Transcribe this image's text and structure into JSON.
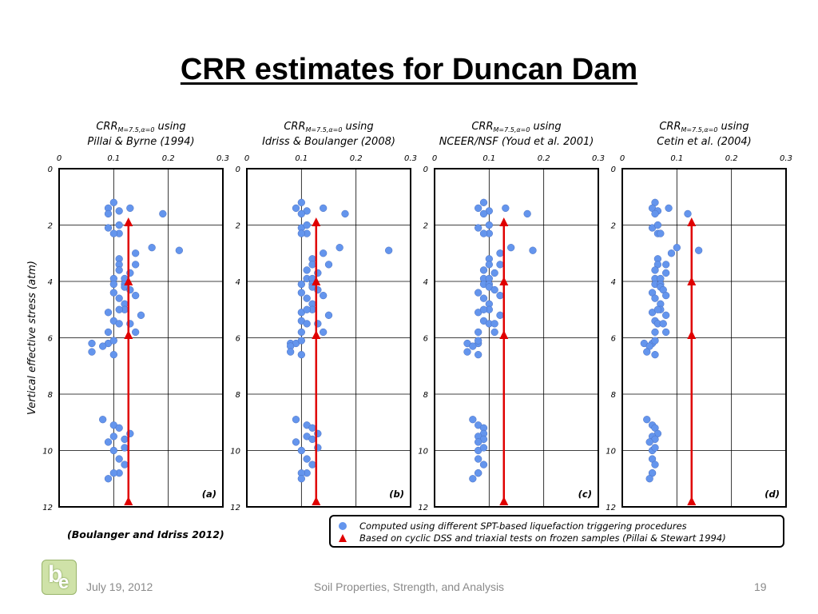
{
  "title": "CRR estimates for Duncan Dam",
  "footer": {
    "date": "July 19, 2012",
    "center": "Soil Properties, Strength, and Analysis",
    "page": "19"
  },
  "source": "(Boulanger and Idriss 2012)",
  "legend": {
    "computed": "Computed using different SPT-based liquefaction triggering procedures",
    "frozen": "Based on cyclic DSS and triaxial tests on frozen samples (Pillai & Stewart 1994)"
  },
  "colors": {
    "points": "#6495ED",
    "frozen": "#e00000"
  },
  "icons": {
    "logo": "be-logo-icon"
  },
  "chart_data": [
    {
      "type": "scatter",
      "panel": "(a)",
      "title_prefix": "CRR",
      "title_subscript": "M=7.5,α=0",
      "title_suffix": "using",
      "title_line2": "Pillai & Byrne (1994)",
      "ylabel": "Vertical effective stress (atm)",
      "xlim": [
        0,
        0.3
      ],
      "ylim": [
        12,
        0
      ],
      "xticks": [
        "0",
        "0.1",
        "0.2",
        "0.3"
      ],
      "yticks": [
        "0",
        "2",
        "4",
        "6",
        "8",
        "10",
        "12"
      ],
      "grid": true,
      "series": [
        {
          "x": [
            0.1,
            0.09,
            0.11,
            0.09,
            0.13,
            0.19,
            0.09,
            0.11,
            0.11,
            0.1,
            0.17,
            0.22,
            0.14,
            0.11,
            0.11,
            0.14,
            0.11,
            0.13,
            0.1,
            0.12,
            0.1,
            0.12,
            0.12,
            0.13,
            0.1,
            0.14,
            0.11,
            0.12,
            0.12,
            0.09,
            0.11,
            0.15,
            0.1,
            0.11,
            0.13,
            0.09,
            0.14,
            0.06,
            0.09,
            0.1,
            0.08,
            0.06,
            0.1,
            0.08,
            0.1,
            0.11,
            0.13,
            0.1,
            0.12,
            0.09,
            0.1,
            0.12,
            0.11,
            0.12,
            0.11,
            0.1,
            0.09
          ],
          "y": [
            1.2,
            1.4,
            1.5,
            1.6,
            1.4,
            1.6,
            2.1,
            2.0,
            2.3,
            2.3,
            2.8,
            2.9,
            3.0,
            3.2,
            3.4,
            3.4,
            3.6,
            3.7,
            3.9,
            3.9,
            4.1,
            4.1,
            4.2,
            4.3,
            4.4,
            4.5,
            4.6,
            4.8,
            5.0,
            5.1,
            5.0,
            5.2,
            5.4,
            5.5,
            5.5,
            5.8,
            5.8,
            6.2,
            6.2,
            6.1,
            6.3,
            6.5,
            6.6,
            8.9,
            9.1,
            9.2,
            9.4,
            9.5,
            9.6,
            9.7,
            10.0,
            9.9,
            10.3,
            10.5,
            10.8,
            10.8,
            11.0
          ]
        }
      ],
      "frozen": {
        "x": 0.127,
        "y": [
          1.9,
          4.0,
          5.9,
          11.8
        ]
      }
    },
    {
      "type": "scatter",
      "panel": "(b)",
      "title_prefix": "CRR",
      "title_subscript": "M=7.5,α=0",
      "title_suffix": "using",
      "title_line2": "Idriss & Boulanger (2008)",
      "xlim": [
        0,
        0.3
      ],
      "ylim": [
        12,
        0
      ],
      "xticks": [
        "0",
        "0.1",
        "0.2",
        "0.3"
      ],
      "yticks": [
        "0",
        "2",
        "4",
        "6",
        "8",
        "10",
        "12"
      ],
      "grid": true,
      "series": [
        {
          "x": [
            0.1,
            0.09,
            0.11,
            0.1,
            0.14,
            0.18,
            0.1,
            0.11,
            0.11,
            0.1,
            0.17,
            0.26,
            0.14,
            0.12,
            0.12,
            0.15,
            0.11,
            0.13,
            0.11,
            0.12,
            0.1,
            0.12,
            0.12,
            0.13,
            0.1,
            0.14,
            0.11,
            0.12,
            0.12,
            0.1,
            0.11,
            0.15,
            0.1,
            0.11,
            0.13,
            0.1,
            0.14,
            0.08,
            0.09,
            0.1,
            0.08,
            0.08,
            0.1,
            0.09,
            0.11,
            0.12,
            0.13,
            0.11,
            0.12,
            0.09,
            0.1,
            0.13,
            0.11,
            0.12,
            0.11,
            0.1,
            0.1
          ],
          "y": [
            1.2,
            1.4,
            1.5,
            1.6,
            1.4,
            1.6,
            2.1,
            2.0,
            2.3,
            2.3,
            2.8,
            2.9,
            3.0,
            3.2,
            3.4,
            3.4,
            3.6,
            3.7,
            3.9,
            3.9,
            4.1,
            4.1,
            4.2,
            4.3,
            4.4,
            4.5,
            4.6,
            4.8,
            5.0,
            5.1,
            5.0,
            5.2,
            5.4,
            5.5,
            5.5,
            5.8,
            5.8,
            6.2,
            6.2,
            6.1,
            6.3,
            6.5,
            6.6,
            8.9,
            9.1,
            9.2,
            9.4,
            9.5,
            9.6,
            9.7,
            10.0,
            9.9,
            10.3,
            10.5,
            10.8,
            10.8,
            11.0
          ]
        }
      ],
      "frozen": {
        "x": 0.127,
        "y": [
          1.9,
          4.0,
          5.9,
          11.8
        ]
      }
    },
    {
      "type": "scatter",
      "panel": "(c)",
      "title_prefix": "CRR",
      "title_subscript": "M=7.5,α=0",
      "title_suffix": "using",
      "title_line2": "NCEER/NSF (Youd et al. 2001)",
      "xlim": [
        0,
        0.3
      ],
      "ylim": [
        12,
        0
      ],
      "xticks": [
        "0",
        "0.1",
        "0.2",
        "0.3"
      ],
      "yticks": [
        "0",
        "2",
        "4",
        "6",
        "8",
        "10",
        "12"
      ],
      "grid": true,
      "series": [
        {
          "x": [
            0.09,
            0.08,
            0.1,
            0.09,
            0.13,
            0.17,
            0.08,
            0.1,
            0.1,
            0.09,
            0.14,
            0.18,
            0.12,
            0.1,
            0.1,
            0.12,
            0.09,
            0.11,
            0.09,
            0.1,
            0.09,
            0.1,
            0.1,
            0.11,
            0.08,
            0.12,
            0.09,
            0.1,
            0.1,
            0.08,
            0.09,
            0.12,
            0.09,
            0.1,
            0.11,
            0.08,
            0.11,
            0.06,
            0.08,
            0.08,
            0.07,
            0.06,
            0.08,
            0.07,
            0.08,
            0.09,
            0.09,
            0.08,
            0.09,
            0.08,
            0.08,
            0.09,
            0.08,
            0.09,
            0.08,
            0.08,
            0.07
          ],
          "y": [
            1.2,
            1.4,
            1.5,
            1.6,
            1.4,
            1.6,
            2.1,
            2.0,
            2.3,
            2.3,
            2.8,
            2.9,
            3.0,
            3.2,
            3.4,
            3.4,
            3.6,
            3.7,
            3.9,
            3.9,
            4.1,
            4.1,
            4.2,
            4.3,
            4.4,
            4.5,
            4.6,
            4.8,
            5.0,
            5.1,
            5.0,
            5.2,
            5.4,
            5.5,
            5.5,
            5.8,
            5.8,
            6.2,
            6.2,
            6.1,
            6.3,
            6.5,
            6.6,
            8.9,
            9.1,
            9.2,
            9.4,
            9.5,
            9.6,
            9.7,
            10.0,
            9.9,
            10.3,
            10.5,
            10.8,
            10.8,
            11.0
          ]
        }
      ],
      "frozen": {
        "x": 0.127,
        "y": [
          1.9,
          4.0,
          5.9,
          11.8
        ]
      }
    },
    {
      "type": "scatter",
      "panel": "(d)",
      "title_prefix": "CRR",
      "title_subscript": "M=7.5,α=0",
      "title_suffix": "using",
      "title_line2": "Cetin et al. (2004)",
      "xlim": [
        0,
        0.3
      ],
      "ylim": [
        12,
        0
      ],
      "xticks": [
        "0",
        "0.1",
        "0.2",
        "0.3"
      ],
      "yticks": [
        "0",
        "2",
        "4",
        "6",
        "8",
        "10",
        "12"
      ],
      "grid": true,
      "series": [
        {
          "x": [
            0.06,
            0.055,
            0.065,
            0.06,
            0.085,
            0.12,
            0.055,
            0.065,
            0.065,
            0.07,
            0.1,
            0.14,
            0.09,
            0.065,
            0.065,
            0.08,
            0.06,
            0.08,
            0.06,
            0.07,
            0.06,
            0.07,
            0.07,
            0.075,
            0.055,
            0.08,
            0.06,
            0.07,
            0.07,
            0.055,
            0.065,
            0.08,
            0.06,
            0.065,
            0.075,
            0.06,
            0.08,
            0.04,
            0.055,
            0.06,
            0.05,
            0.045,
            0.06,
            0.045,
            0.055,
            0.06,
            0.065,
            0.055,
            0.06,
            0.05,
            0.055,
            0.06,
            0.055,
            0.06,
            0.055,
            0.055,
            0.05
          ],
          "y": [
            1.2,
            1.4,
            1.5,
            1.6,
            1.4,
            1.6,
            2.1,
            2.0,
            2.3,
            2.3,
            2.8,
            2.9,
            3.0,
            3.2,
            3.4,
            3.4,
            3.6,
            3.7,
            3.9,
            3.9,
            4.1,
            4.1,
            4.2,
            4.3,
            4.4,
            4.5,
            4.6,
            4.8,
            5.0,
            5.1,
            5.0,
            5.2,
            5.4,
            5.5,
            5.5,
            5.8,
            5.8,
            6.2,
            6.2,
            6.1,
            6.3,
            6.5,
            6.6,
            8.9,
            9.1,
            9.2,
            9.4,
            9.5,
            9.6,
            9.7,
            10.0,
            9.9,
            10.3,
            10.5,
            10.8,
            10.8,
            11.0
          ]
        }
      ],
      "frozen": {
        "x": 0.127,
        "y": [
          1.9,
          4.0,
          5.9,
          11.8
        ]
      }
    }
  ]
}
